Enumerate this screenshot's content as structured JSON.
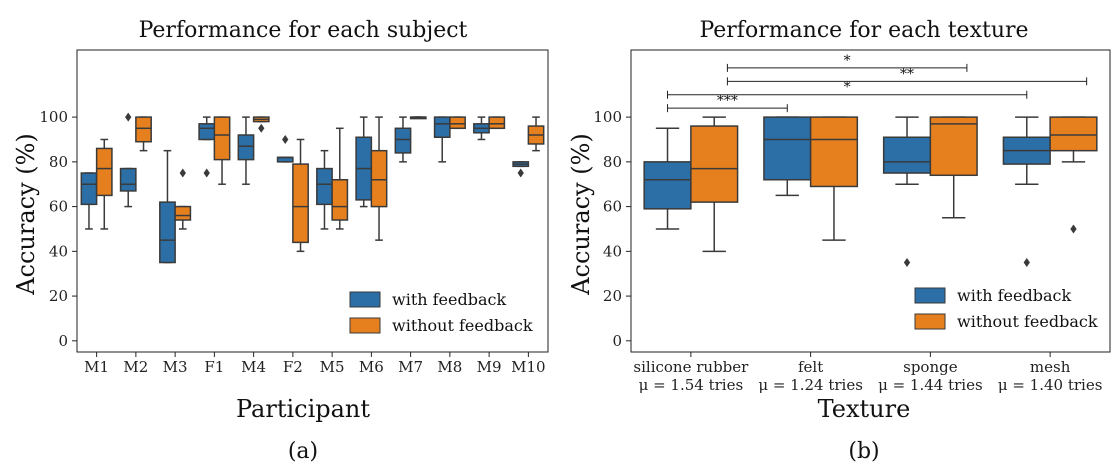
{
  "colors": {
    "with_feedback": "#2c6fa6",
    "without_feedback": "#e6801f",
    "stroke": "#3a3a3a"
  },
  "subfigure_labels": {
    "a": "(a)",
    "b": "(b)"
  },
  "chart_data": [
    {
      "type": "box",
      "title": "Performance for each subject",
      "xlabel": "Participant",
      "ylabel": "Accuracy (%)",
      "ylim": [
        -5,
        130
      ],
      "yticks": [
        0,
        20,
        40,
        60,
        80,
        100
      ],
      "categories": [
        "M1",
        "M2",
        "M3",
        "F1",
        "M4",
        "F2",
        "M5",
        "M6",
        "M7",
        "M8",
        "M9",
        "M10"
      ],
      "legend": {
        "position": "bottom-right",
        "entries": [
          "with feedback",
          "without feedback"
        ]
      },
      "series": [
        {
          "name": "with feedback",
          "boxes": [
            {
              "min": 50,
              "q1": 61,
              "median": 70,
              "q3": 75,
              "max": 75,
              "outliers": []
            },
            {
              "min": 60,
              "q1": 67,
              "median": 70,
              "q3": 77,
              "max": 77,
              "outliers": [
                100
              ]
            },
            {
              "min": 35,
              "q1": 35,
              "median": 45,
              "q3": 62,
              "max": 85,
              "outliers": []
            },
            {
              "min": 90,
              "q1": 90,
              "median": 95,
              "q3": 97,
              "max": 100,
              "outliers": [
                75
              ]
            },
            {
              "min": 70,
              "q1": 81,
              "median": 87,
              "q3": 92,
              "max": 100,
              "outliers": []
            },
            {
              "min": 80,
              "q1": 80,
              "median": 82,
              "q3": 82,
              "max": 82,
              "outliers": [
                90
              ]
            },
            {
              "min": 50,
              "q1": 61,
              "median": 70,
              "q3": 77,
              "max": 85,
              "outliers": []
            },
            {
              "min": 60,
              "q1": 63,
              "median": 77,
              "q3": 91,
              "max": 100,
              "outliers": []
            },
            {
              "min": 80,
              "q1": 84,
              "median": 90,
              "q3": 95,
              "max": 100,
              "outliers": []
            },
            {
              "min": 80,
              "q1": 91,
              "median": 97,
              "q3": 100,
              "max": 100,
              "outliers": []
            },
            {
              "min": 90,
              "q1": 93,
              "median": 95,
              "q3": 97,
              "max": 100,
              "outliers": []
            },
            {
              "min": 78,
              "q1": 78,
              "median": 79,
              "q3": 80,
              "max": 80,
              "outliers": [
                75
              ]
            }
          ]
        },
        {
          "name": "without feedback",
          "boxes": [
            {
              "min": 50,
              "q1": 65,
              "median": 77,
              "q3": 86,
              "max": 90,
              "outliers": []
            },
            {
              "min": 85,
              "q1": 89,
              "median": 95,
              "q3": 100,
              "max": 100,
              "outliers": []
            },
            {
              "min": 50,
              "q1": 54,
              "median": 56,
              "q3": 60,
              "max": 60,
              "outliers": [
                75
              ]
            },
            {
              "min": 70,
              "q1": 81,
              "median": 92,
              "q3": 100,
              "max": 100,
              "outliers": []
            },
            {
              "min": 98,
              "q1": 98,
              "median": 99,
              "q3": 100,
              "max": 100,
              "outliers": [
                95
              ]
            },
            {
              "min": 40,
              "q1": 44,
              "median": 60,
              "q3": 79,
              "max": 90,
              "outliers": []
            },
            {
              "min": 50,
              "q1": 54,
              "median": 60,
              "q3": 72,
              "max": 95,
              "outliers": []
            },
            {
              "min": 45,
              "q1": 60,
              "median": 72,
              "q3": 85,
              "max": 100,
              "outliers": []
            },
            {
              "min": 100,
              "q1": 100,
              "median": 100,
              "q3": 100,
              "max": 100,
              "outliers": []
            },
            {
              "min": 95,
              "q1": 95,
              "median": 97,
              "q3": 100,
              "max": 100,
              "outliers": []
            },
            {
              "min": 95,
              "q1": 95,
              "median": 97,
              "q3": 100,
              "max": 100,
              "outliers": []
            },
            {
              "min": 85,
              "q1": 88,
              "median": 92,
              "q3": 96,
              "max": 100,
              "outliers": []
            }
          ]
        }
      ]
    },
    {
      "type": "box",
      "title": "Performance for each texture",
      "xlabel": "Texture",
      "ylabel": "Accuracy (%)",
      "ylim": [
        -5,
        130
      ],
      "yticks": [
        0,
        20,
        40,
        60,
        80,
        100
      ],
      "categories": [
        "silicone rubber",
        "felt",
        "sponge",
        "mesh"
      ],
      "category_sublabels": [
        "μ = 1.54 tries",
        "μ = 1.24 tries",
        "μ = 1.44 tries",
        "μ = 1.40 tries"
      ],
      "legend": {
        "position": "bottom-right",
        "entries": [
          "with feedback",
          "without feedback"
        ]
      },
      "series": [
        {
          "name": "with feedback",
          "boxes": [
            {
              "min": 50,
              "q1": 59,
              "median": 72,
              "q3": 80,
              "max": 95,
              "outliers": []
            },
            {
              "min": 65,
              "q1": 72,
              "median": 90,
              "q3": 100,
              "max": 100,
              "outliers": []
            },
            {
              "min": 70,
              "q1": 75,
              "median": 80,
              "q3": 91,
              "max": 100,
              "outliers": [
                35
              ]
            },
            {
              "min": 70,
              "q1": 79,
              "median": 85,
              "q3": 91,
              "max": 100,
              "outliers": [
                35
              ]
            }
          ]
        },
        {
          "name": "without feedback",
          "boxes": [
            {
              "min": 40,
              "q1": 62,
              "median": 77,
              "q3": 96,
              "max": 100,
              "outliers": []
            },
            {
              "min": 45,
              "q1": 69,
              "median": 90,
              "q3": 100,
              "max": 100,
              "outliers": []
            },
            {
              "min": 55,
              "q1": 74,
              "median": 97,
              "q3": 100,
              "max": 100,
              "outliers": []
            },
            {
              "min": 80,
              "q1": 85,
              "median": 92,
              "q3": 100,
              "max": 100,
              "outliers": [
                50
              ]
            }
          ]
        }
      ],
      "significance": [
        {
          "from": 0,
          "to": 1,
          "label": "***",
          "y": 104
        },
        {
          "from": 0,
          "to": 3,
          "label": "*",
          "y": 110
        },
        {
          "from": 0.5,
          "to": 3.5,
          "label": "**",
          "y": 116
        },
        {
          "from": 0.5,
          "to": 2.5,
          "label": "*",
          "y": 122
        }
      ]
    }
  ]
}
